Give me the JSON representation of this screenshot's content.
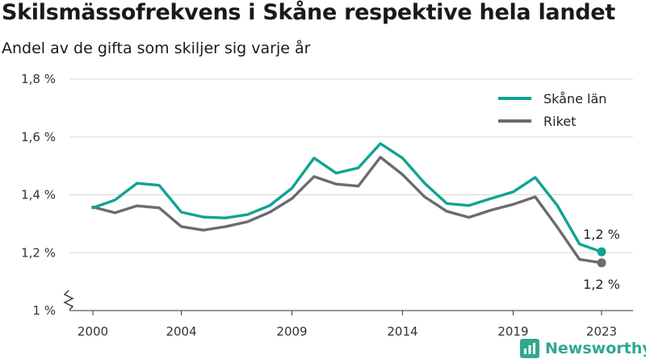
{
  "title": "Skilsmässofrekvens i Skåne respektive hela landet",
  "subtitle": "Andel av de gifta som skiljer sig varje år",
  "brand": {
    "name": "Newsworthy",
    "icon": "bar-chart-logo-icon",
    "color": "#2fa88f"
  },
  "chart_data": {
    "type": "line",
    "title": "Skilsmässofrekvens i Skåne respektive hela landet",
    "subtitle": "Andel av de gifta som skiljer sig varje år",
    "xlabel": "",
    "ylabel": "",
    "x": [
      2000,
      2001,
      2002,
      2003,
      2004,
      2005,
      2006,
      2007,
      2008,
      2009,
      2010,
      2011,
      2012,
      2013,
      2014,
      2015,
      2016,
      2017,
      2018,
      2019,
      2020,
      2021,
      2022,
      2023
    ],
    "x_ticks": [
      2000,
      2004,
      2009,
      2014,
      2019,
      2023
    ],
    "x_tick_labels": [
      "2000",
      "2004",
      "2009",
      "2014",
      "2019",
      "2023"
    ],
    "ylim": [
      1.0,
      1.8
    ],
    "y_ticks": [
      1.0,
      1.2,
      1.4,
      1.6,
      1.8
    ],
    "y_tick_labels": [
      "1 %",
      "1,2 %",
      "1,4 %",
      "1,6 %",
      "1,8 %"
    ],
    "y_axis_break": true,
    "grid": true,
    "legend_position": "top-right",
    "series": [
      {
        "name": "Skåne län",
        "color": "#0fa393",
        "values": [
          1.355,
          1.382,
          1.44,
          1.433,
          1.34,
          1.323,
          1.32,
          1.332,
          1.363,
          1.423,
          1.527,
          1.475,
          1.493,
          1.577,
          1.527,
          1.44,
          1.37,
          1.363,
          1.387,
          1.41,
          1.46,
          1.363,
          1.23,
          1.203
        ],
        "end_label": "1,2 %"
      },
      {
        "name": "Riket",
        "color": "#6b6b70",
        "values": [
          1.358,
          1.338,
          1.362,
          1.355,
          1.29,
          1.278,
          1.29,
          1.307,
          1.34,
          1.387,
          1.463,
          1.437,
          1.43,
          1.53,
          1.47,
          1.393,
          1.343,
          1.322,
          1.347,
          1.367,
          1.393,
          1.288,
          1.177,
          1.165
        ],
        "end_label": "1,2 %"
      }
    ]
  }
}
